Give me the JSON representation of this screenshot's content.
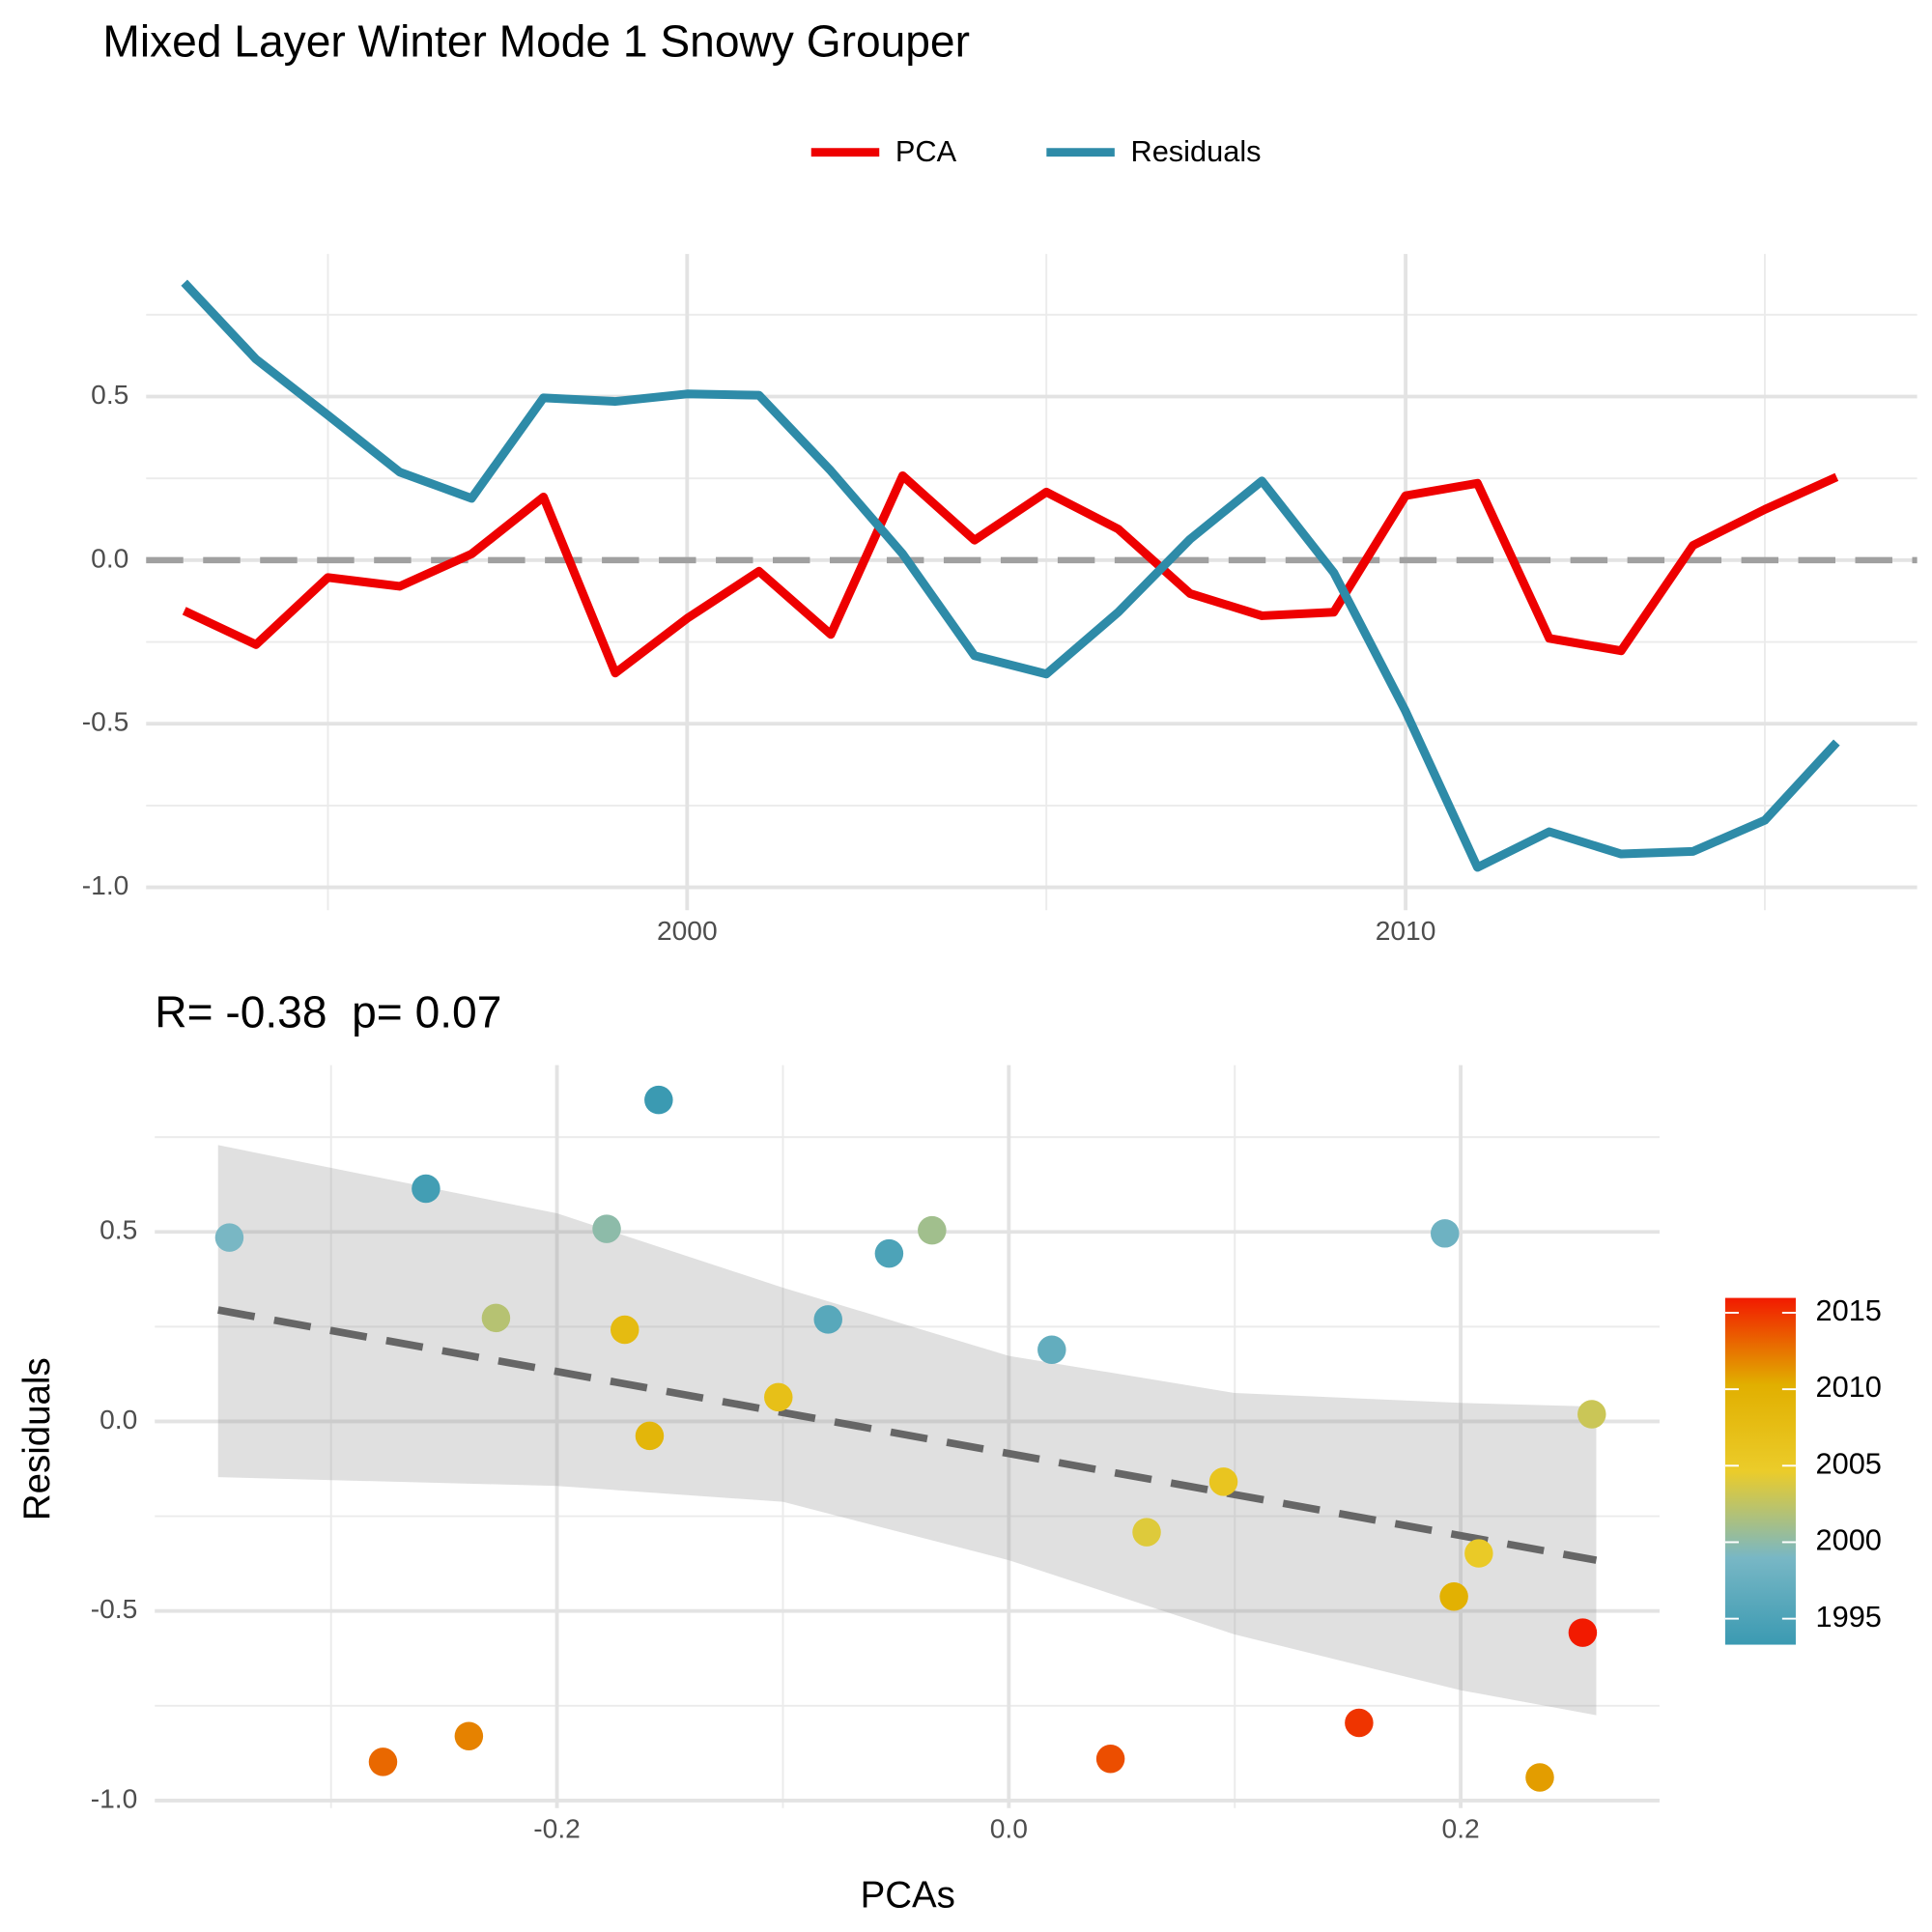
{
  "chart_data": [
    {
      "type": "line",
      "title": "Mixed Layer Winter Mode 1 Snowy Grouper",
      "legend": "top",
      "grid": true,
      "x": [
        1993,
        1994,
        1995,
        1996,
        1997,
        1998,
        1999,
        2000,
        2001,
        2002,
        2003,
        2004,
        2005,
        2006,
        2007,
        2008,
        2009,
        2010,
        2011,
        2012,
        2013,
        2014,
        2015,
        2016
      ],
      "series": [
        {
          "name": "PCA",
          "color": "#ee0000",
          "values": [
            -0.155,
            -0.258,
            -0.053,
            -0.08,
            0.019,
            0.193,
            -0.345,
            -0.178,
            -0.034,
            -0.227,
            0.258,
            0.061,
            0.208,
            0.095,
            -0.102,
            -0.17,
            -0.159,
            0.197,
            0.235,
            -0.239,
            -0.277,
            0.045,
            0.155,
            0.254
          ]
        },
        {
          "name": "Residuals",
          "color": "#2e8ba8",
          "values": [
            0.848,
            0.614,
            0.443,
            0.269,
            0.189,
            0.496,
            0.485,
            0.508,
            0.504,
            0.273,
            0.019,
            -0.292,
            -0.348,
            -0.159,
            0.064,
            0.242,
            -0.038,
            -0.462,
            -0.939,
            -0.83,
            -0.898,
            -0.89,
            -0.795,
            -0.557
          ]
        }
      ],
      "hline": 0,
      "xlim": [
        1992.47,
        2017.12
      ],
      "xticks": [
        2000,
        2010
      ],
      "xminor": [
        1995,
        2005,
        2015
      ],
      "ylim": [
        -1.07,
        0.936
      ],
      "yticks": [
        0.5,
        {
          "value": 0,
          "label": "0.0"
        },
        -0.5,
        {
          "value": -1,
          "label": "-1.0"
        }
      ],
      "yminor": [
        0.75,
        0.25,
        -0.25,
        -0.75
      ]
    },
    {
      "type": "scatter",
      "title": "R= -0.38  p= 0.07",
      "x_label": "PCAs",
      "y_label": "Residuals",
      "grid": true,
      "x": [
        -0.155,
        -0.258,
        -0.053,
        -0.08,
        0.019,
        0.193,
        -0.345,
        -0.178,
        -0.034,
        -0.227,
        0.258,
        0.061,
        0.208,
        0.095,
        -0.102,
        -0.17,
        -0.159,
        0.197,
        0.235,
        -0.239,
        -0.277,
        0.045,
        0.155,
        0.254
      ],
      "y": [
        0.848,
        0.614,
        0.443,
        0.269,
        0.189,
        0.496,
        0.485,
        0.508,
        0.504,
        0.273,
        0.019,
        -0.292,
        -0.348,
        -0.159,
        0.064,
        0.242,
        -0.038,
        -0.462,
        -0.939,
        -0.83,
        -0.898,
        -0.89,
        -0.795,
        -0.557
      ],
      "color_values": [
        1993,
        1994,
        1995,
        1996,
        1997,
        1998,
        1999,
        2000,
        2001,
        2002,
        2003,
        2004,
        2005,
        2006,
        2007,
        2008,
        2009,
        2010,
        2011,
        2012,
        2013,
        2014,
        2015,
        2016
      ],
      "colors": [
        "#3b9ab2",
        "#78b7c5",
        "#ebcc2a",
        "#e1af00",
        "#f21a00"
      ],
      "clim": [
        1993.3,
        2015.97
      ],
      "cticks": [
        1995,
        2000,
        2005,
        2010,
        2015
      ],
      "fit": {
        "x": [
          -0.35,
          0.26
        ],
        "y": [
          0.294,
          -0.366
        ],
        "color": "#666666"
      },
      "band": {
        "x": [
          -0.35,
          -0.2,
          -0.1,
          0,
          0.1,
          0.2,
          0.26
        ],
        "upper": [
          0.729,
          0.549,
          0.353,
          0.173,
          0.075,
          0.049,
          0.039
        ],
        "lower": [
          -0.147,
          -0.17,
          -0.212,
          -0.366,
          -0.562,
          -0.709,
          -0.775
        ]
      },
      "xlim": [
        -0.378,
        0.288
      ],
      "xticks": [
        -0.2,
        {
          "value": 0,
          "label": "0.0"
        },
        0.2
      ],
      "xminor": [
        -0.3,
        -0.1,
        0.1
      ],
      "ylim": [
        -1.02,
        0.94
      ],
      "yticks": [
        0.5,
        {
          "value": 0,
          "label": "0.0"
        },
        -0.5,
        {
          "value": -1,
          "label": "-1.0"
        }
      ],
      "yminor": [
        0.75,
        0.25,
        -0.25,
        -0.75
      ]
    }
  ]
}
